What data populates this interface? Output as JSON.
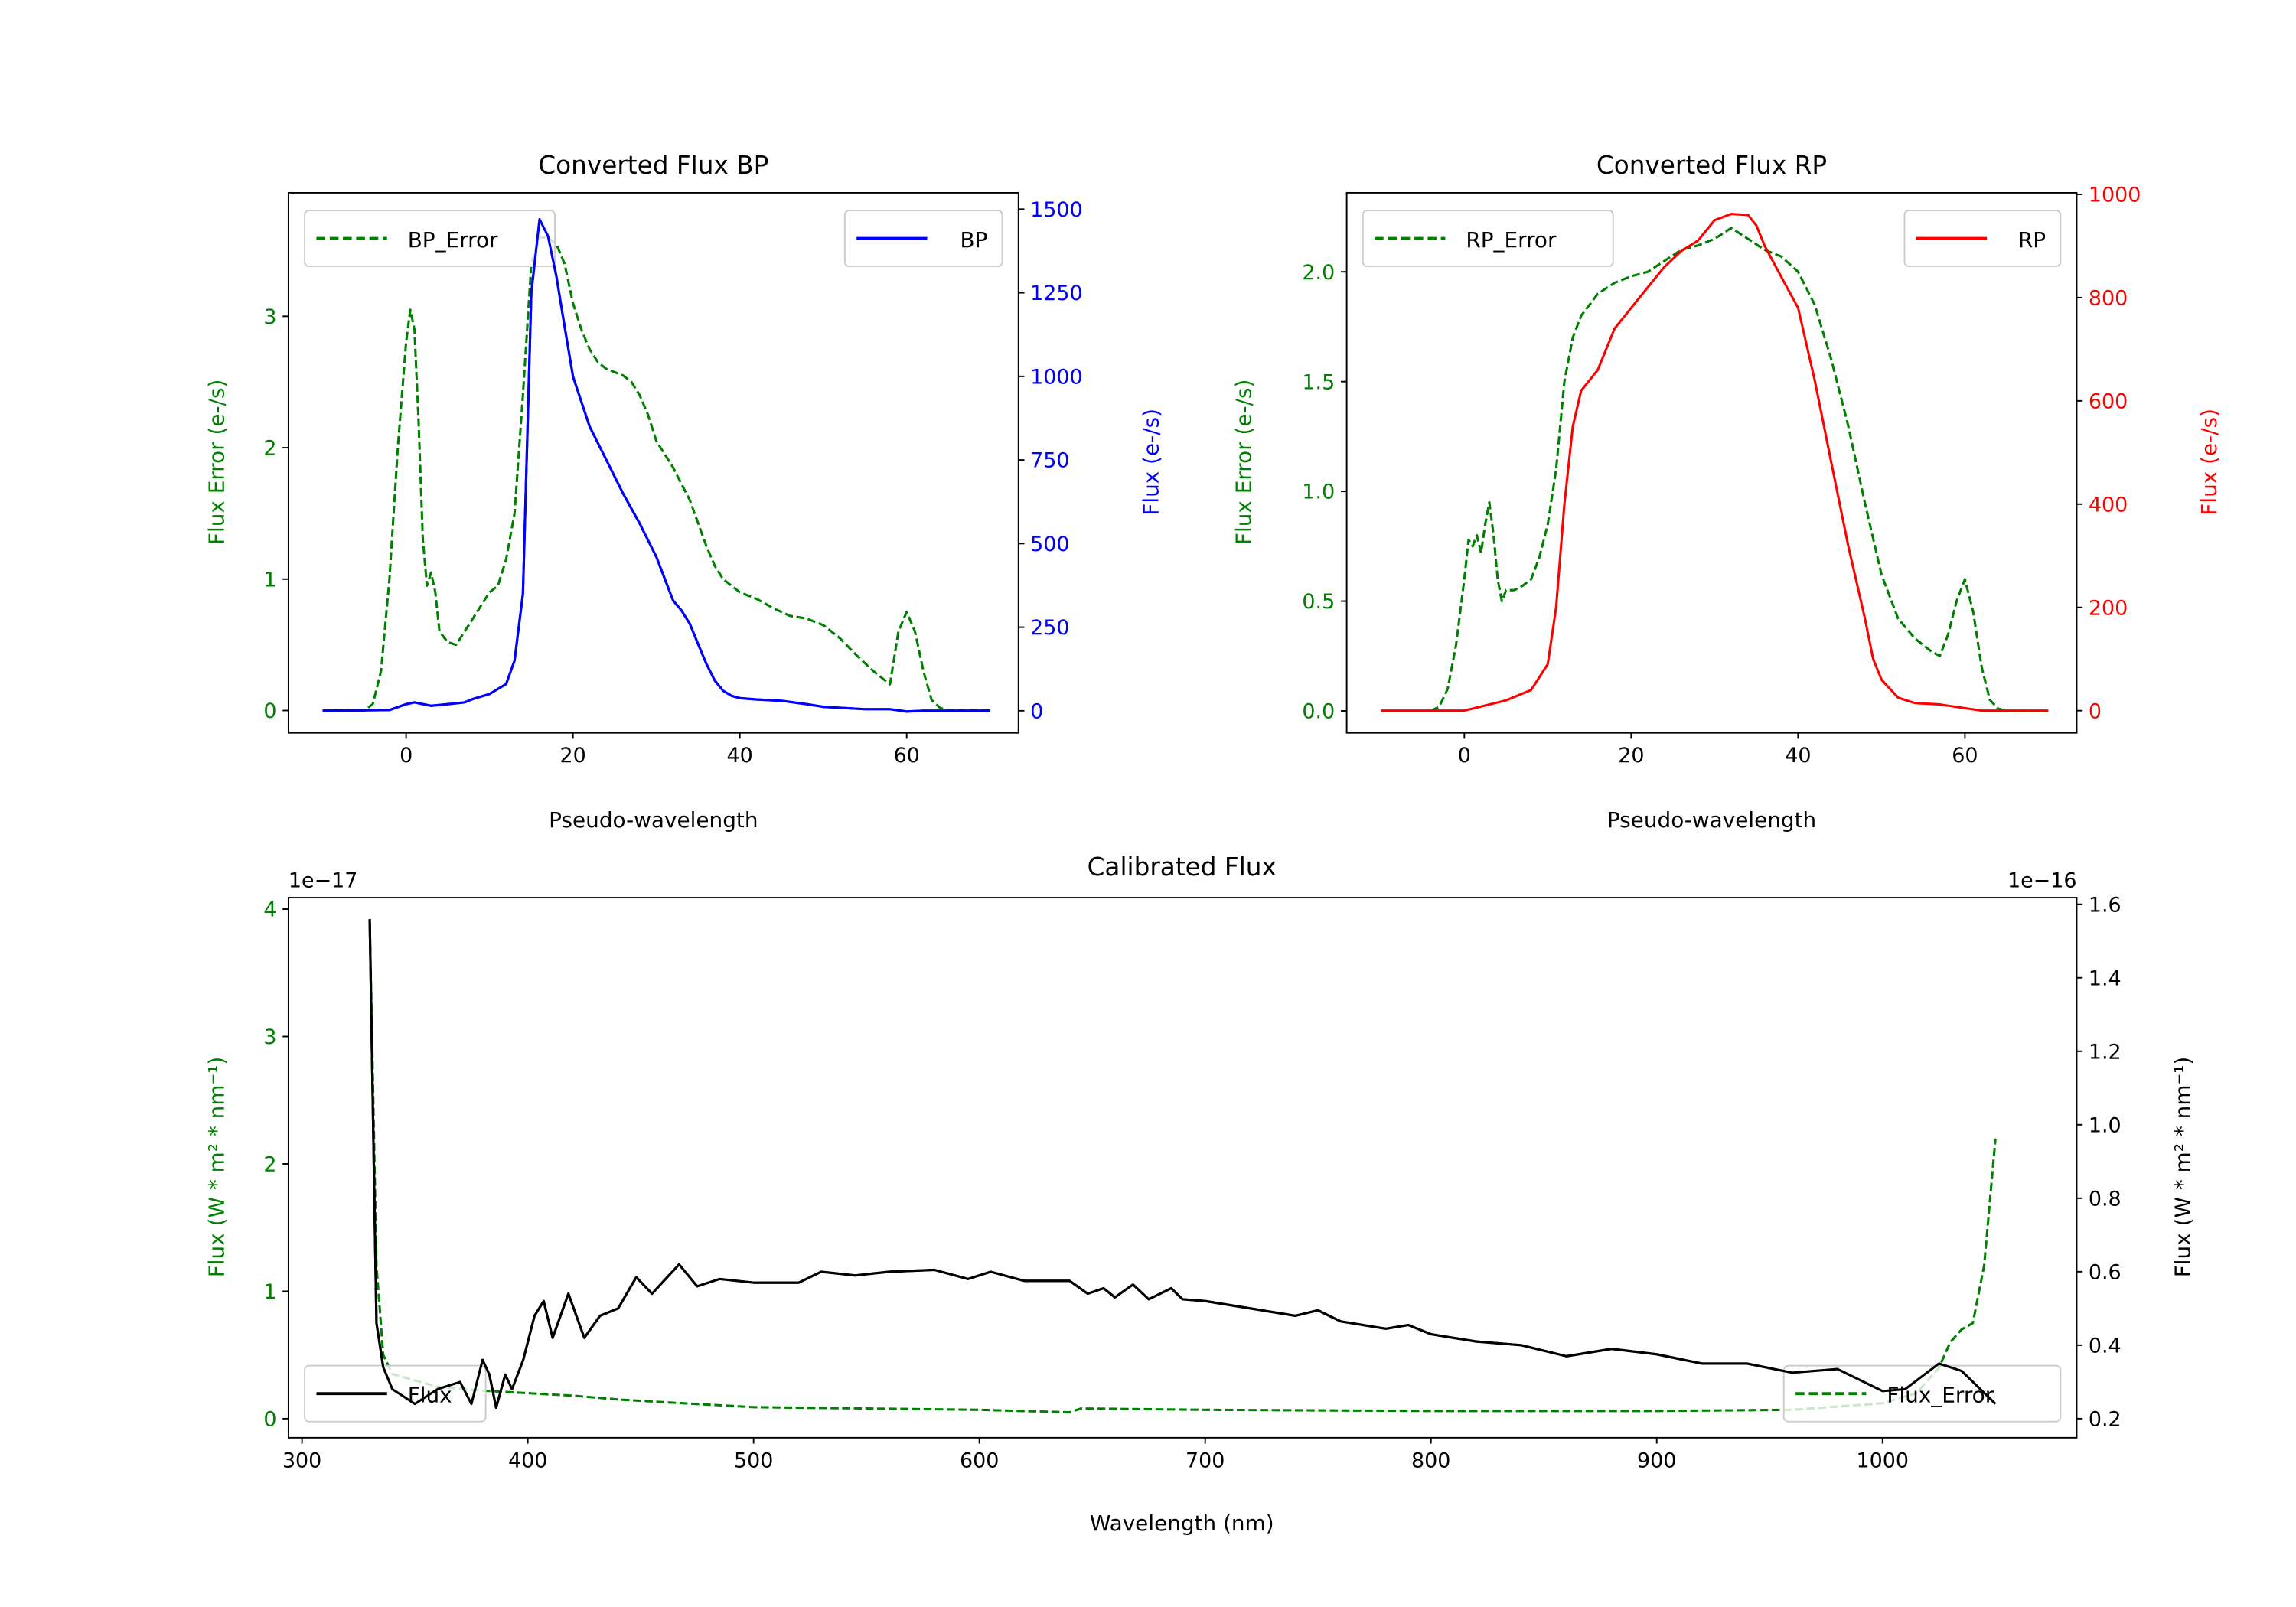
{
  "chart_data": [
    {
      "type": "line",
      "title": "Converted Flux BP",
      "xlabel": "Pseudo-wavelength",
      "ylabel_left": "Flux Error (e-/s)",
      "ylabel_right": "Flux (e-/s)",
      "xlim": [
        -14.1,
        73.4
      ],
      "ylim_left": [
        -0.17,
        3.94
      ],
      "ylim_right": [
        -66,
        1549
      ],
      "xticks": [
        0,
        20,
        40,
        60
      ],
      "yticks_left": [
        0,
        1,
        2,
        3
      ],
      "yticks_right": [
        0,
        250,
        500,
        750,
        1000,
        1250,
        1500
      ],
      "left_color": "#008000",
      "right_color": "#0000ff",
      "legend_left": {
        "label": "BP_Error",
        "placement": "upper-left"
      },
      "legend_right": {
        "label": "BP",
        "placement": "upper-right"
      },
      "series": [
        {
          "name": "BP_Error",
          "axis": "left",
          "style": "dashed",
          "color": "#008000",
          "x": [
            -10,
            -5,
            -4,
            -3,
            -2,
            -1,
            0,
            0.5,
            1,
            1.5,
            2,
            2.5,
            3,
            3.5,
            4,
            5,
            6,
            7,
            8,
            9,
            10,
            11,
            12,
            13,
            14,
            15,
            16,
            17,
            18,
            19,
            20,
            21,
            22,
            23,
            24,
            26,
            27,
            28,
            29,
            30,
            32,
            34,
            36,
            37,
            38,
            40,
            42,
            44,
            46,
            48,
            50,
            52,
            54,
            56,
            57,
            58,
            59,
            60,
            61,
            62,
            63,
            64,
            65,
            70
          ],
          "y": [
            0,
            0,
            0.05,
            0.3,
            1.0,
            2.0,
            2.8,
            3.05,
            2.9,
            2.2,
            1.3,
            0.95,
            1.05,
            0.9,
            0.6,
            0.52,
            0.5,
            0.6,
            0.7,
            0.8,
            0.9,
            0.95,
            1.15,
            1.5,
            2.4,
            3.4,
            3.6,
            3.6,
            3.55,
            3.4,
            3.1,
            2.9,
            2.75,
            2.65,
            2.6,
            2.55,
            2.5,
            2.4,
            2.25,
            2.05,
            1.85,
            1.6,
            1.25,
            1.1,
            1.0,
            0.9,
            0.85,
            0.78,
            0.72,
            0.7,
            0.65,
            0.55,
            0.42,
            0.3,
            0.25,
            0.2,
            0.6,
            0.75,
            0.6,
            0.3,
            0.08,
            0.02,
            0,
            0
          ]
        },
        {
          "name": "BP",
          "axis": "right",
          "style": "solid",
          "color": "#0000ff",
          "x": [
            -10,
            -2,
            0,
            1,
            3,
            5,
            7,
            8,
            10,
            12,
            13,
            14,
            15,
            16,
            17,
            18,
            19,
            20,
            22,
            24,
            26,
            28,
            30,
            32,
            33,
            34,
            35,
            36,
            37,
            38,
            39,
            40,
            42,
            45,
            48,
            50,
            55,
            58,
            60,
            62,
            70
          ],
          "y": [
            0,
            2,
            20,
            25,
            15,
            20,
            25,
            35,
            50,
            80,
            150,
            350,
            1250,
            1470,
            1420,
            1300,
            1150,
            1000,
            850,
            750,
            650,
            560,
            460,
            330,
            300,
            260,
            200,
            140,
            90,
            60,
            45,
            38,
            34,
            30,
            20,
            12,
            5,
            5,
            -2,
            0,
            0
          ]
        }
      ]
    },
    {
      "type": "line",
      "title": "Converted Flux RP",
      "xlabel": "Pseudo-wavelength",
      "ylabel_left": "Flux Error (e-/s)",
      "ylabel_right": "Flux (e-/s)",
      "xlim": [
        -14.1,
        73.4
      ],
      "ylim_left": [
        -0.1,
        2.36
      ],
      "ylim_right": [
        -43,
        1003
      ],
      "xticks": [
        0,
        20,
        40,
        60
      ],
      "yticks_left": [
        "0.0",
        "0.5",
        "1.0",
        "1.5",
        "2.0"
      ],
      "yticks_right": [
        0,
        200,
        400,
        600,
        800,
        1000
      ],
      "left_color": "#008000",
      "right_color": "#ff0000",
      "legend_left": {
        "label": "RP_Error",
        "placement": "upper-left"
      },
      "legend_right": {
        "label": "RP",
        "placement": "upper-right"
      },
      "series": [
        {
          "name": "RP_Error",
          "axis": "left",
          "style": "dashed",
          "color": "#008000",
          "x": [
            -4,
            -3,
            -2,
            -1,
            0,
            0.5,
            1,
            1.5,
            2,
            2.5,
            3,
            3.5,
            4,
            4.5,
            5,
            6,
            7,
            8,
            9,
            10,
            11,
            12,
            13,
            14,
            15,
            16,
            18,
            20,
            22,
            24,
            26,
            28,
            30,
            32,
            34,
            36,
            38,
            40,
            42,
            44,
            46,
            48,
            50,
            52,
            54,
            56,
            57,
            58,
            59,
            60,
            61,
            62,
            63,
            64,
            65,
            70
          ],
          "y": [
            0,
            0.02,
            0.1,
            0.3,
            0.6,
            0.78,
            0.75,
            0.8,
            0.72,
            0.85,
            0.95,
            0.8,
            0.6,
            0.5,
            0.55,
            0.55,
            0.57,
            0.6,
            0.7,
            0.85,
            1.1,
            1.5,
            1.7,
            1.8,
            1.85,
            1.9,
            1.95,
            1.98,
            2.0,
            2.05,
            2.1,
            2.12,
            2.15,
            2.2,
            2.15,
            2.1,
            2.07,
            2.0,
            1.85,
            1.6,
            1.3,
            0.95,
            0.62,
            0.42,
            0.33,
            0.27,
            0.25,
            0.35,
            0.5,
            0.6,
            0.45,
            0.2,
            0.05,
            0.01,
            0,
            0
          ]
        },
        {
          "name": "RP",
          "axis": "right",
          "style": "solid",
          "color": "#ff0000",
          "x": [
            -10,
            0,
            2,
            5,
            8,
            10,
            11,
            12,
            13,
            14,
            15,
            16,
            17,
            18,
            20,
            22,
            24,
            26,
            28,
            29,
            30,
            32,
            34,
            35,
            36,
            38,
            40,
            42,
            44,
            46,
            48,
            49,
            50,
            52,
            54,
            57,
            60,
            62,
            70
          ],
          "y": [
            0,
            0,
            8,
            20,
            40,
            90,
            200,
            400,
            550,
            620,
            640,
            660,
            700,
            740,
            780,
            820,
            860,
            890,
            910,
            930,
            950,
            962,
            960,
            940,
            900,
            840,
            780,
            640,
            480,
            320,
            180,
            100,
            60,
            25,
            15,
            12,
            5,
            0,
            0
          ]
        }
      ]
    },
    {
      "type": "line",
      "title": "Calibrated Flux",
      "xlabel": "Wavelength (nm)",
      "ylabel_left": "Flux (W * m² * nm⁻¹)",
      "ylabel_right": "Flux (W * m² * nm⁻¹)",
      "offset_left": "1e−17",
      "offset_right": "1e−16",
      "xlim": [
        294,
        1086
      ],
      "ylim_left": [
        -0.15,
        4.09
      ],
      "ylim_right": [
        0.148,
        1.618
      ],
      "xticks": [
        300,
        400,
        500,
        600,
        700,
        800,
        900,
        1000
      ],
      "yticks_left": [
        0,
        1,
        2,
        3,
        4
      ],
      "yticks_right": [
        "0.2",
        "0.4",
        "0.6",
        "0.8",
        "1.0",
        "1.2",
        "1.4",
        "1.6"
      ],
      "left_color": "#008000",
      "right_color": "#000000",
      "legend_left": {
        "label": "Flux",
        "placement": "lower-left"
      },
      "legend_right": {
        "label": "Flux_Error",
        "placement": "lower-right"
      },
      "series": [
        {
          "name": "Flux_Error",
          "axis": "left",
          "style": "dashed",
          "color": "#008000",
          "x": [
            330,
            331,
            333,
            336,
            340,
            350,
            360,
            380,
            400,
            420,
            440,
            460,
            480,
            500,
            550,
            600,
            640,
            645,
            700,
            800,
            900,
            960,
            1000,
            1015,
            1025,
            1030,
            1035,
            1040,
            1045,
            1050
          ],
          "y": [
            3.9,
            3.0,
            1.2,
            0.5,
            0.35,
            0.3,
            0.25,
            0.22,
            0.2,
            0.18,
            0.15,
            0.13,
            0.11,
            0.09,
            0.08,
            0.07,
            0.05,
            0.08,
            0.07,
            0.06,
            0.06,
            0.07,
            0.12,
            0.2,
            0.4,
            0.6,
            0.7,
            0.75,
            1.2,
            2.2
          ]
        },
        {
          "name": "Flux",
          "axis": "right",
          "style": "solid",
          "color": "#000000",
          "x": [
            330,
            333,
            336,
            340,
            350,
            360,
            370,
            375,
            380,
            383,
            386,
            390,
            393,
            398,
            403,
            407,
            411,
            418,
            425,
            432,
            440,
            448,
            455,
            467,
            475,
            485,
            500,
            520,
            530,
            545,
            560,
            580,
            595,
            605,
            620,
            640,
            648,
            655,
            660,
            668,
            675,
            685,
            690,
            700,
            720,
            740,
            750,
            760,
            780,
            790,
            800,
            820,
            840,
            860,
            880,
            900,
            920,
            940,
            960,
            980,
            1000,
            1010,
            1025,
            1035,
            1050
          ],
          "y": [
            1.56,
            0.46,
            0.34,
            0.28,
            0.24,
            0.28,
            0.3,
            0.24,
            0.36,
            0.32,
            0.23,
            0.32,
            0.28,
            0.36,
            0.48,
            0.52,
            0.42,
            0.54,
            0.42,
            0.48,
            0.5,
            0.585,
            0.54,
            0.62,
            0.56,
            0.58,
            0.57,
            0.57,
            0.6,
            0.59,
            0.6,
            0.605,
            0.58,
            0.6,
            0.575,
            0.575,
            0.54,
            0.555,
            0.53,
            0.565,
            0.525,
            0.555,
            0.525,
            0.52,
            0.5,
            0.48,
            0.495,
            0.465,
            0.445,
            0.455,
            0.43,
            0.41,
            0.4,
            0.37,
            0.39,
            0.375,
            0.35,
            0.35,
            0.325,
            0.335,
            0.275,
            0.28,
            0.35,
            0.33,
            0.24
          ]
        }
      ]
    }
  ]
}
